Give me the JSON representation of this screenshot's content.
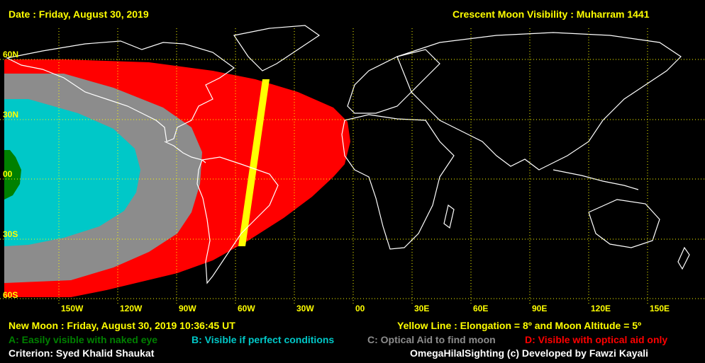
{
  "header": {
    "date": "Date : Friday, August 30, 2019",
    "title": "Crescent Moon Visibility : Muharram  1441"
  },
  "lat_labels": [
    "60N",
    "30N",
    "00",
    "30S",
    "60S"
  ],
  "lon_labels": [
    "150W",
    "120W",
    "90W",
    "60W",
    "30W",
    "00",
    "30E",
    "60E",
    "90E",
    "120E",
    "150E"
  ],
  "footer": {
    "new_moon": "New Moon : Friday, August 30, 2019  10:36:45  UT",
    "yellow_line": "Yellow Line : Elongation = 8º  and Moon Altitude = 5º",
    "legend_a": "A: Easily visible with naked eye",
    "legend_b": "B: Visible if perfect conditions",
    "legend_c": "C: Optical Aid to find moon",
    "legend_d": "D: Visible with optical aid only",
    "criterion": "Criterion: Syed Khalid Shaukat",
    "credit": "OmegaHilalSighting  (c)  Developed by Fawzi Kayali"
  },
  "colors": {
    "zone_a": "#008000",
    "zone_b": "#00c8c8",
    "zone_c": "#8c8c8c",
    "zone_d": "#ff0000",
    "yellow_line": "#ffff00",
    "grid": "#ffff00",
    "land_outline": "#ffffff"
  }
}
